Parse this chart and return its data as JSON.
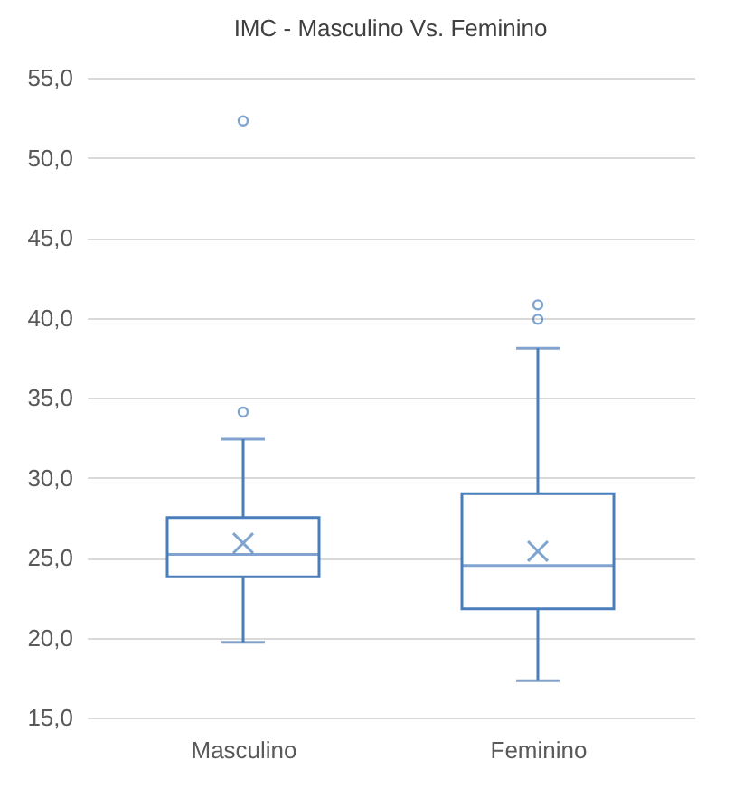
{
  "chart_data": {
    "type": "box",
    "title": "IMC - Masculino Vs. Feminino",
    "categories": [
      "Masculino",
      "Feminino"
    ],
    "series": [
      {
        "color": "#4a7ebb",
        "boxes": [
          {
            "low": 19.7,
            "q1": 23.8,
            "median": 25.2,
            "q3": 27.5,
            "high": 32.4,
            "mean": 25.9,
            "outliers": [
              34.1,
              52.3
            ]
          },
          {
            "low": 17.3,
            "q1": 21.8,
            "median": 24.5,
            "q3": 29.0,
            "high": 38.1,
            "mean": 25.4,
            "outliers": [
              39.9,
              40.8
            ]
          }
        ]
      }
    ],
    "ylim": [
      15,
      55
    ],
    "yticks": [
      {
        "value": 15,
        "label": "15,0"
      },
      {
        "value": 20,
        "label": "20,0"
      },
      {
        "value": 25,
        "label": "25,0"
      },
      {
        "value": 30,
        "label": "30,0"
      },
      {
        "value": 35,
        "label": "35,0"
      },
      {
        "value": 40,
        "label": "40,0"
      },
      {
        "value": 45,
        "label": "45,0"
      },
      {
        "value": 50,
        "label": "50,0"
      },
      {
        "value": 55,
        "label": "55,0"
      }
    ],
    "grid": "y"
  }
}
